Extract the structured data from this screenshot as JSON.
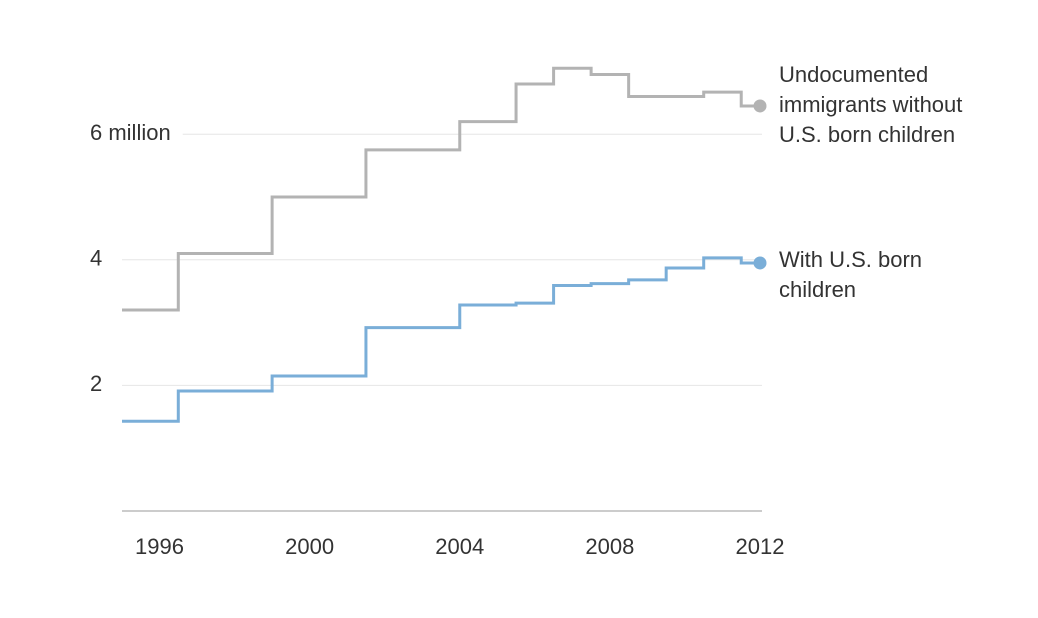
{
  "chart_data": {
    "type": "step",
    "x": [
      1995,
      1996.5,
      1999,
      2001.5,
      2004,
      2005.5,
      2006.5,
      2007.5,
      2008.5,
      2009.5,
      2010.5,
      2011.5,
      2012
    ],
    "series": [
      {
        "name": "Undocumented immigrants without U.S. born children",
        "color": "#b3b3b3",
        "values": [
          3.2,
          4.1,
          5.0,
          5.75,
          6.2,
          6.8,
          7.05,
          6.95,
          6.6,
          6.6,
          6.67,
          6.45,
          6.45
        ]
      },
      {
        "name": "With U.S. born children",
        "color": "#7aaed8",
        "values": [
          1.43,
          1.91,
          2.15,
          2.92,
          3.28,
          3.31,
          3.59,
          3.62,
          3.68,
          3.87,
          4.03,
          3.95,
          3.95
        ]
      }
    ],
    "xlim": [
      1995,
      2012
    ],
    "xticks": [
      1996,
      2000,
      2004,
      2008,
      2012
    ],
    "ylim": [
      0,
      7.5
    ],
    "yticks": [
      2,
      4,
      {
        "value": 6,
        "label": "6 million"
      }
    ],
    "grid": true
  }
}
